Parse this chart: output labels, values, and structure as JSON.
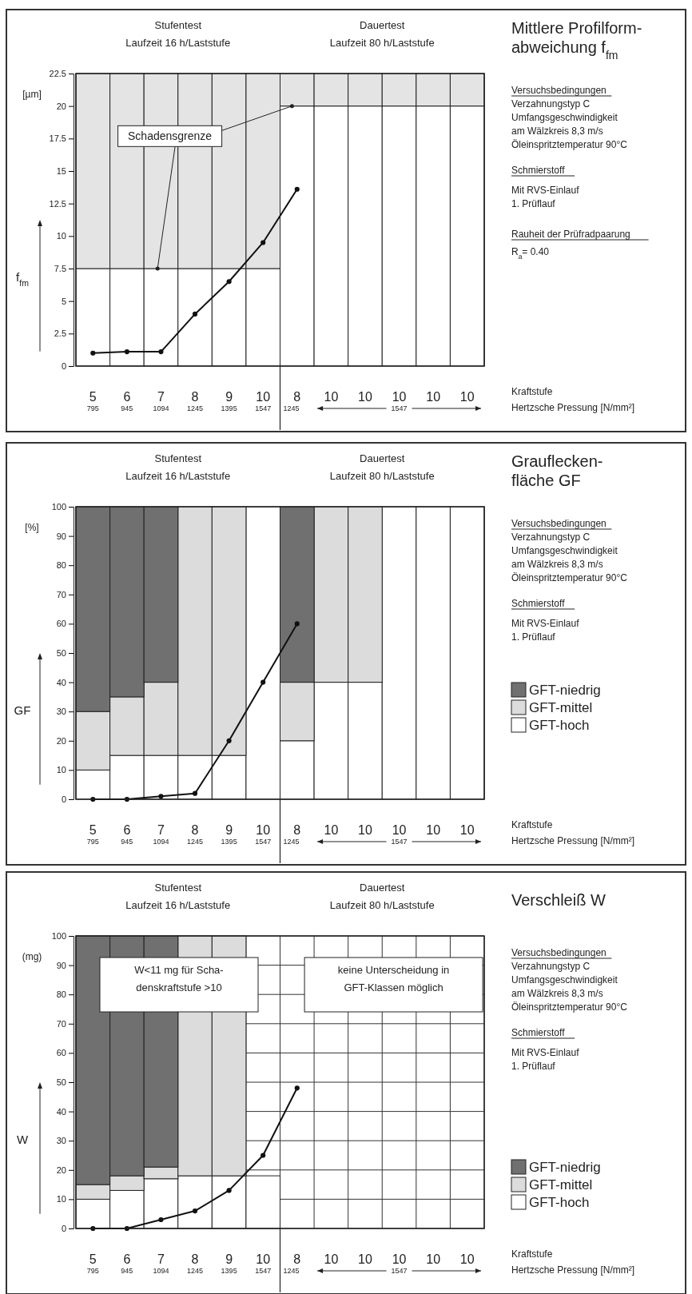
{
  "chart_data": [
    {
      "type": "bar",
      "stacked": true,
      "xlabel": "Kraftstufe",
      "ylabel": "f$_{fm}$",
      "categories": [
        "5",
        "6",
        "7",
        "8",
        "9",
        "10",
        "8",
        "10",
        "10",
        "10",
        "10",
        "10"
      ],
      "series": [
        {
          "color": "#ffffff",
          "values": [
            7.5,
            7.5,
            7.5,
            7.5,
            7.5,
            7.5,
            20,
            20,
            20,
            20,
            20,
            20
          ]
        },
        {
          "color": "#e4e4e4",
          "values": [
            15,
            15,
            15,
            15,
            15,
            15,
            2.5,
            2.5,
            2.5,
            2.5,
            2.5,
            2.5
          ]
        },
        {
          "type": "line",
          "color": "#111111",
          "marker": "circle",
          "values": [
            1.0,
            1.1,
            1.1,
            4.0,
            6.5,
            9.5,
            13.6,
            null,
            null,
            null,
            null,
            null
          ]
        }
      ],
      "ylim": [
        0,
        22.5
      ],
      "yticks": [
        0,
        2.5,
        5,
        7.5,
        10,
        12.5,
        15,
        17.5,
        20,
        22.5
      ],
      "grid": "x",
      "annotations": [
        "Stufentest",
        "Laufzeit 16 h/Laststufe",
        "Dauertest",
        "Laufzeit 80 h/Laststufe",
        "[µm]",
        "Hertzsche Pressung [N/mm²]",
        "795",
        "945",
        "1094",
        "1245",
        "1395",
        "1547",
        "1245",
        "1547",
        "Versuchsbedingungen",
        "Verzahnungstyp C",
        "Umfangsgeschwindigkeit",
        "am Wälzkreis 8,3 m/s",
        "Öleinspritztemperatur 90°C",
        "Schmierstoff",
        "Mit RVS-Einlauf",
        "1. Prüflauf",
        "Rauheit der Prüfradpaarung",
        "R$_{a}$= 0.40",
        {
          "text": "Schadensgrenze",
          "x": "7",
          "y": 7.5
        },
        "Mittlere Profilform-\nabweichung f$_{fm}$"
      ]
    },
    {
      "type": "bar",
      "stacked": true,
      "xlabel": "Kraftstufe",
      "ylabel": "GF",
      "categories": [
        "5",
        "6",
        "7",
        "8",
        "9",
        "10",
        "8",
        "10",
        "10",
        "10",
        "10",
        "10"
      ],
      "series": [
        {
          "name": "GFT-hoch",
          "color": "#ffffff",
          "values": [
            10,
            15,
            15,
            15,
            15,
            100,
            20,
            40,
            40,
            100,
            100,
            100
          ]
        },
        {
          "name": "GFT-mittel",
          "color": "#dcdcdc",
          "values": [
            20,
            20,
            25,
            85,
            85,
            0,
            20,
            60,
            60,
            0,
            0,
            0
          ]
        },
        {
          "name": "GFT-niedrig",
          "color": "#707070",
          "values": [
            70,
            65,
            60,
            0,
            0,
            0,
            60,
            0,
            0,
            0,
            0,
            0
          ]
        },
        {
          "type": "line",
          "color": "#111111",
          "marker": "circle",
          "values": [
            0,
            0,
            1,
            2,
            20,
            40,
            60,
            null,
            null,
            null,
            null,
            null
          ]
        }
      ],
      "ylim": [
        0,
        100
      ],
      "yticks": [
        0,
        10,
        20,
        30,
        40,
        50,
        60,
        70,
        80,
        90,
        100
      ],
      "grid": "x",
      "legend": "right",
      "annotations": [
        "Stufentest",
        "Laufzeit 16 h/Laststufe",
        "Dauertest",
        "Laufzeit 80 h/Laststufe",
        "[%]",
        "Hertzsche Pressung [N/mm²]",
        "795",
        "945",
        "1094",
        "1245",
        "1395",
        "1547",
        "1245",
        "1547",
        "Versuchsbedingungen",
        "Verzahnungstyp C",
        "Umfangsgeschwindigkeit",
        "am Wälzkreis 8,3 m/s",
        "Öleinspritztemperatur 90°C",
        "Schmierstoff",
        "Mit RVS-Einlauf",
        "1. Prüflauf",
        "Grauflecken-\nfläche GF"
      ]
    },
    {
      "type": "bar",
      "stacked": true,
      "xlabel": "Kraftstufe",
      "ylabel": "W",
      "categories": [
        "5",
        "6",
        "7",
        "8",
        "9",
        "10",
        "8",
        "10",
        "10",
        "10",
        "10",
        "10"
      ],
      "series": [
        {
          "name": "GFT-hoch",
          "color": "#ffffff",
          "values": [
            10,
            13,
            17,
            18,
            18,
            18,
            null,
            null,
            null,
            null,
            null,
            null
          ]
        },
        {
          "name": "GFT-mittel",
          "color": "#dcdcdc",
          "values": [
            5,
            5,
            4,
            82,
            82,
            null,
            null,
            null,
            null,
            null,
            null,
            null
          ]
        },
        {
          "name": "GFT-niedrig",
          "color": "#707070",
          "values": [
            85,
            82,
            79,
            0,
            0,
            null,
            null,
            null,
            null,
            null,
            null,
            null
          ]
        },
        {
          "type": "line",
          "color": "#111111",
          "marker": "circle",
          "values": [
            0,
            0,
            3,
            6,
            13,
            25,
            48,
            null,
            null,
            null,
            null,
            null
          ]
        }
      ],
      "ylim": [
        0,
        100
      ],
      "yticks": [
        0,
        10,
        20,
        30,
        40,
        50,
        60,
        70,
        80,
        90,
        100
      ],
      "grid": true,
      "legend": "right",
      "annotations": [
        "Stufentest",
        "Laufzeit 16 h/Laststufe",
        "Dauertest",
        "Laufzeit 80 h/Laststufe",
        "(mg)",
        "Hertzsche Pressung [N/mm²]",
        "795",
        "945",
        "1094",
        "1245",
        "1395",
        "1547",
        "1245",
        "1547",
        "Versuchsbedingungen",
        "Verzahnungstyp C",
        "Umfangsgeschwindigkeit",
        "am Wälzkreis 8,3 m/s",
        "Öleinspritztemperatur 90°C",
        "Schmierstoff",
        "Mit RVS-Einlauf",
        "1. Prüflauf",
        "W<11 mg für Scha-\ndenskraftstufe >10",
        "keine Unterscheidung in\nGFT-Klassen möglich",
        "Verschleiß W"
      ]
    }
  ]
}
